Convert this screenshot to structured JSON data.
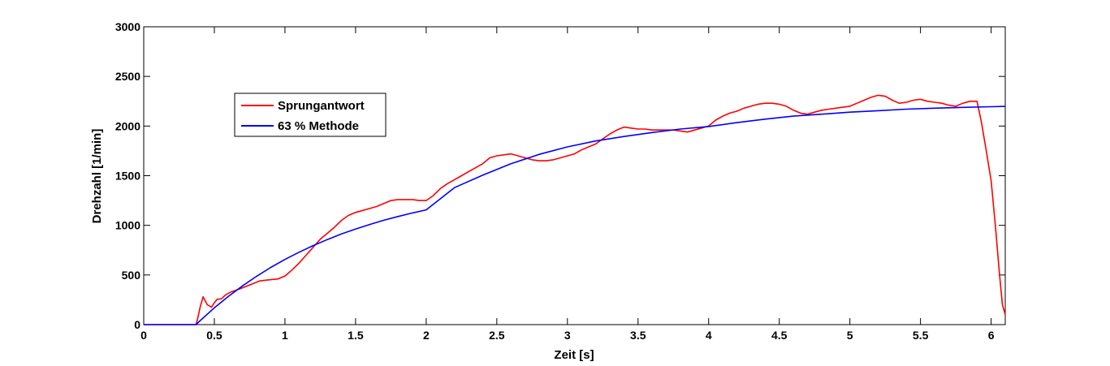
{
  "chart_data": {
    "type": "line",
    "xlabel": "Zeit [s]",
    "ylabel": "Drehzahl [1/min]",
    "xlim": [
      0,
      6.1
    ],
    "ylim": [
      0,
      3000
    ],
    "xticks": [
      0,
      0.5,
      1,
      1.5,
      2,
      2.5,
      3,
      3.5,
      4,
      4.5,
      5,
      5.5,
      6
    ],
    "xtick_labels": [
      "0",
      "0.5",
      "1",
      "1.5",
      "2",
      "2.5",
      "3",
      "3.5",
      "4",
      "4.5",
      "5",
      "5.5",
      "6"
    ],
    "yticks": [
      0,
      500,
      1000,
      1500,
      2000,
      2500,
      3000
    ],
    "ytick_labels": [
      "0",
      "500",
      "1000",
      "1500",
      "2000",
      "2500",
      "3000"
    ],
    "grid": false,
    "legend_position": "upper-left",
    "series": [
      {
        "name": "Sprungantwort",
        "color": "#ff0000",
        "x": [
          0,
          0.37,
          0.38,
          0.4,
          0.42,
          0.45,
          0.48,
          0.5,
          0.52,
          0.55,
          0.58,
          0.62,
          0.68,
          0.75,
          0.82,
          0.88,
          0.95,
          1.0,
          1.05,
          1.1,
          1.15,
          1.2,
          1.25,
          1.3,
          1.35,
          1.4,
          1.45,
          1.5,
          1.55,
          1.6,
          1.65,
          1.7,
          1.75,
          1.8,
          1.85,
          1.9,
          1.95,
          2.0,
          2.05,
          2.1,
          2.15,
          2.2,
          2.25,
          2.3,
          2.35,
          2.4,
          2.45,
          2.5,
          2.55,
          2.6,
          2.65,
          2.7,
          2.75,
          2.8,
          2.85,
          2.9,
          2.95,
          3.0,
          3.05,
          3.1,
          3.15,
          3.2,
          3.25,
          3.3,
          3.35,
          3.4,
          3.45,
          3.5,
          3.55,
          3.6,
          3.65,
          3.7,
          3.75,
          3.8,
          3.85,
          3.9,
          3.95,
          4.0,
          4.05,
          4.1,
          4.15,
          4.2,
          4.25,
          4.3,
          4.35,
          4.4,
          4.45,
          4.5,
          4.55,
          4.6,
          4.65,
          4.7,
          4.75,
          4.8,
          4.85,
          4.9,
          4.95,
          5.0,
          5.05,
          5.1,
          5.15,
          5.2,
          5.25,
          5.3,
          5.35,
          5.4,
          5.45,
          5.5,
          5.55,
          5.6,
          5.65,
          5.7,
          5.75,
          5.8,
          5.85,
          5.9,
          5.93,
          5.96,
          6.0,
          6.03,
          6.06,
          6.08,
          6.1
        ],
        "y": [
          0,
          0,
          50,
          180,
          280,
          200,
          175,
          220,
          255,
          260,
          300,
          330,
          360,
          400,
          440,
          450,
          460,
          490,
          550,
          620,
          700,
          780,
          860,
          920,
          980,
          1050,
          1100,
          1130,
          1150,
          1170,
          1190,
          1220,
          1250,
          1260,
          1260,
          1260,
          1250,
          1250,
          1300,
          1370,
          1420,
          1460,
          1500,
          1540,
          1580,
          1620,
          1680,
          1700,
          1710,
          1720,
          1700,
          1680,
          1660,
          1650,
          1650,
          1660,
          1680,
          1700,
          1720,
          1760,
          1790,
          1820,
          1870,
          1920,
          1960,
          1990,
          1980,
          1970,
          1970,
          1960,
          1960,
          1960,
          1960,
          1950,
          1940,
          1960,
          1980,
          2000,
          2060,
          2100,
          2130,
          2150,
          2180,
          2200,
          2220,
          2230,
          2230,
          2220,
          2200,
          2160,
          2130,
          2120,
          2140,
          2160,
          2170,
          2180,
          2190,
          2200,
          2230,
          2260,
          2290,
          2310,
          2300,
          2260,
          2230,
          2240,
          2260,
          2270,
          2250,
          2240,
          2230,
          2210,
          2200,
          2230,
          2250,
          2250,
          2050,
          1800,
          1450,
          1000,
          500,
          200,
          100
        ]
      },
      {
        "name": "63 % Methode",
        "color": "#0000ff",
        "x": [
          0,
          0.37,
          0.4,
          0.5,
          0.6,
          0.7,
          0.8,
          0.9,
          1.0,
          1.1,
          1.2,
          1.3,
          1.4,
          1.5,
          1.6,
          1.7,
          1.8,
          1.9,
          2.0,
          2.2,
          2.4,
          2.6,
          2.8,
          3.0,
          3.2,
          3.4,
          3.6,
          3.8,
          4.0,
          4.2,
          4.4,
          4.6,
          4.8,
          5.0,
          5.2,
          5.4,
          5.6,
          5.8,
          6.0,
          6.1
        ],
        "y": [
          0,
          0,
          41,
          169,
          285,
          391,
          487,
          576,
          656,
          729,
          796,
          857,
          913,
          963,
          1009,
          1051,
          1089,
          1124,
          1156,
          1380,
          1505,
          1620,
          1715,
          1790,
          1850,
          1895,
          1935,
          1970,
          1995,
          2035,
          2070,
          2100,
          2120,
          2140,
          2155,
          2170,
          2180,
          2188,
          2195,
          2198
        ]
      }
    ]
  }
}
